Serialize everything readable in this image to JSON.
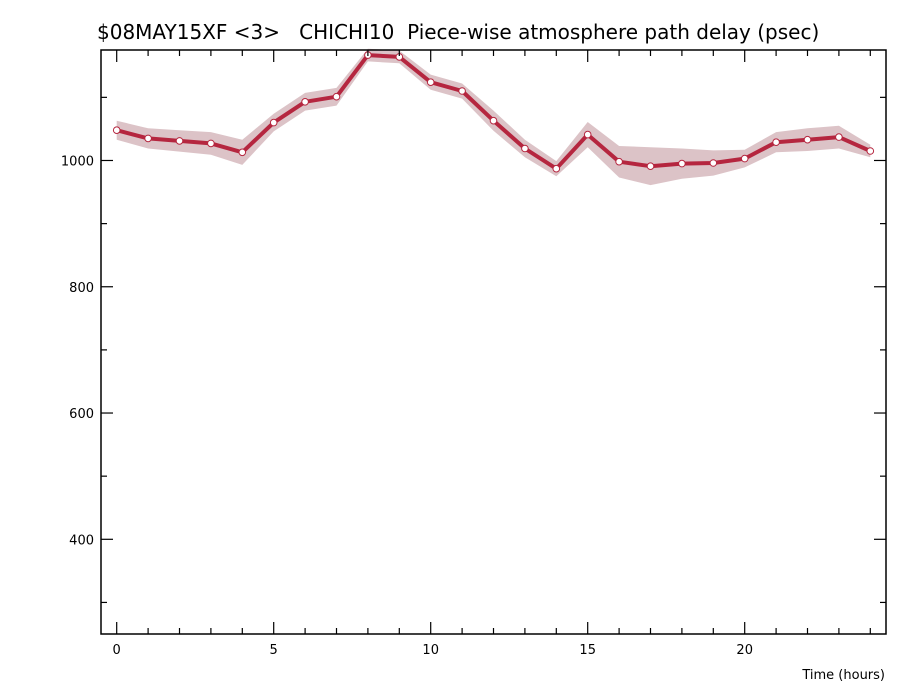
{
  "chart_data": {
    "type": "line",
    "title": "$08MAY15XF <3>   CHICHI10  Piece-wise atmosphere path delay (psec)",
    "xlabel": "Time (hours)",
    "ylabel": "",
    "xlim": [
      -0.5,
      24.5
    ],
    "ylim": [
      250,
      1175
    ],
    "x_ticks": [
      0,
      5,
      10,
      15,
      20
    ],
    "y_ticks": [
      400,
      600,
      800,
      1000
    ],
    "grid": false,
    "colors": {
      "line": "#b5263f",
      "band": "#dcc3c7",
      "marker_fill": "#ffffff",
      "marker_edge": "#b5263f",
      "axis": "#000000"
    },
    "series": [
      {
        "x": [
          0,
          1,
          2,
          3,
          4,
          5,
          6,
          7,
          8,
          9,
          10,
          11,
          12,
          13,
          14,
          15,
          16,
          17,
          18,
          19,
          20,
          21,
          22,
          23,
          24
        ],
        "values": [
          1048,
          1035,
          1031,
          1027,
          1013,
          1060,
          1093,
          1101,
          1167,
          1164,
          1124,
          1110,
          1063,
          1019,
          987,
          1041,
          998,
          991,
          995,
          996,
          1003,
          1029,
          1033,
          1037,
          1015
        ],
        "error": [
          15,
          16,
          17,
          18,
          20,
          14,
          14,
          14,
          10,
          10,
          12,
          12,
          16,
          14,
          12,
          20,
          25,
          30,
          24,
          20,
          14,
          16,
          18,
          18,
          10
        ]
      }
    ]
  }
}
